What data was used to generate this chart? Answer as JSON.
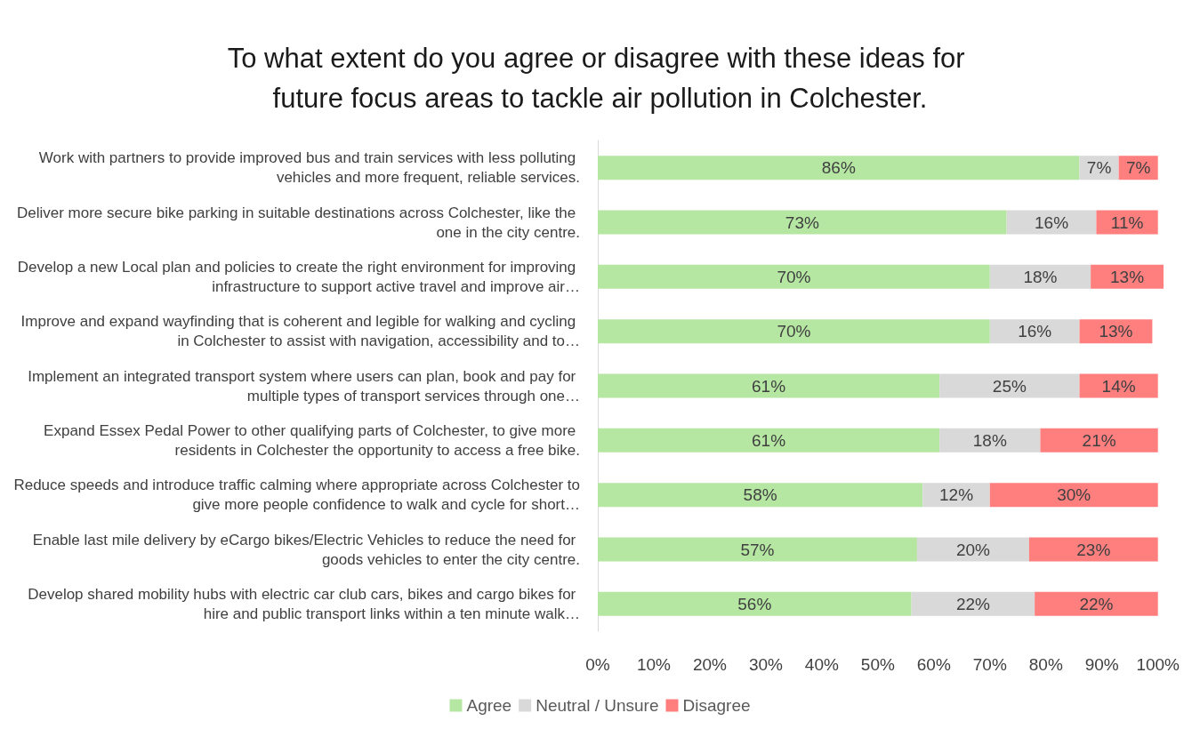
{
  "chart_data": {
    "type": "bar",
    "orientation": "horizontal",
    "stacked": true,
    "title": "To what extent do you agree or disagree with these ideas for future focus areas to tackle air pollution in Colchester.",
    "categories": [
      "Work with partners to provide improved bus and train services with less polluting vehicles and more frequent, reliable services.",
      "Deliver more secure bike parking in suitable destinations across Colchester, like the one in the city centre.",
      "Develop a new Local plan and policies to create the right environment for improving infrastructure to support active travel and improve air…",
      "Improve and expand wayfinding that is coherent and legible for walking and cycling in Colchester to assist with navigation, accessibility and to…",
      "Implement an integrated transport system where users can plan, book and pay for multiple types of transport services through one…",
      "Expand Essex Pedal Power to other qualifying parts of Colchester, to give more residents in Colchester the opportunity to access a free bike.",
      "Reduce speeds and introduce traffic calming where appropriate across Colchester to give more people confidence to walk and cycle for short…",
      "Enable last mile delivery by eCargo bikes/Electric Vehicles to reduce the need for goods vehicles to enter the city centre.",
      "Develop shared mobility hubs with electric car club cars, bikes and cargo bikes for hire and public transport links within a ten minute walk…"
    ],
    "series": [
      {
        "name": "Agree",
        "color": "#b5e6a2",
        "values": [
          86,
          73,
          70,
          70,
          61,
          61,
          58,
          57,
          56
        ],
        "value_labels": [
          "86%",
          "73%",
          "70%",
          "70%",
          "61%",
          "61%",
          "58%",
          "57%",
          "56%"
        ]
      },
      {
        "name": "Neutral / Unsure",
        "color": "#d9d9d9",
        "values": [
          7,
          16,
          18,
          16,
          25,
          18,
          12,
          20,
          22
        ],
        "value_labels": [
          "7%",
          "16%",
          "18%",
          "16%",
          "25%",
          "18%",
          "12%",
          "20%",
          "22%"
        ]
      },
      {
        "name": "Disagree",
        "color": "#ff7f7f",
        "values": [
          7,
          11,
          13,
          13,
          14,
          21,
          30,
          23,
          22
        ],
        "value_labels": [
          "7%",
          "11%",
          "13%",
          "13%",
          "14%",
          "21%",
          "30%",
          "23%",
          "22%"
        ]
      }
    ],
    "xlim": [
      0,
      101
    ],
    "xticks": [
      {
        "value": 0,
        "label": "0%"
      },
      {
        "value": 10,
        "label": "10%"
      },
      {
        "value": 20,
        "label": "20%"
      },
      {
        "value": 30,
        "label": "30%"
      },
      {
        "value": 40,
        "label": "40%"
      },
      {
        "value": 50,
        "label": "50%"
      },
      {
        "value": 60,
        "label": "60%"
      },
      {
        "value": 70,
        "label": "70%"
      },
      {
        "value": 80,
        "label": "80%"
      },
      {
        "value": 90,
        "label": "90%"
      },
      {
        "value": 100,
        "label": "100%"
      }
    ],
    "grid": false,
    "legend": "bottom"
  }
}
